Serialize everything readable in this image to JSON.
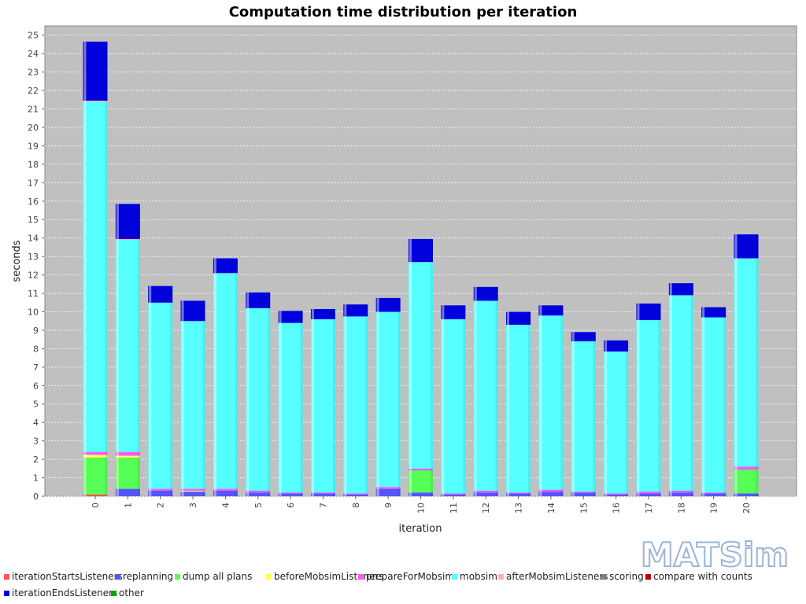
{
  "chart_data": {
    "type": "bar",
    "stacked": true,
    "title": "Computation time distribution per iteration",
    "xlabel": "iteration",
    "ylabel": "seconds",
    "ylim": [
      0,
      25.5
    ],
    "y_ticks": [
      0,
      1,
      2,
      3,
      4,
      5,
      6,
      7,
      8,
      9,
      10,
      11,
      12,
      13,
      14,
      15,
      16,
      17,
      18,
      19,
      20,
      21,
      22,
      23,
      24,
      25
    ],
    "grid": true,
    "legend_position": "bottom",
    "categories": [
      "0",
      "1",
      "2",
      "3",
      "4",
      "5",
      "6",
      "7",
      "8",
      "9",
      "10",
      "11",
      "12",
      "13",
      "14",
      "15",
      "16",
      "17",
      "18",
      "19",
      "20"
    ],
    "series": [
      {
        "name": "iterationStartsListeners",
        "color": "#ff5555",
        "values": [
          0.1,
          0.0,
          0.0,
          0.0,
          0.0,
          0.0,
          0.0,
          0.0,
          0.0,
          0.0,
          0.0,
          0.0,
          0.0,
          0.0,
          0.0,
          0.0,
          0.0,
          0.0,
          0.0,
          0.0,
          0.0
        ]
      },
      {
        "name": "replanning",
        "color": "#5555ff",
        "values": [
          0.0,
          0.4,
          0.3,
          0.25,
          0.3,
          0.2,
          0.15,
          0.15,
          0.1,
          0.4,
          0.2,
          0.1,
          0.2,
          0.15,
          0.25,
          0.2,
          0.1,
          0.15,
          0.2,
          0.15,
          0.15
        ]
      },
      {
        "name": "dump all plans",
        "color": "#55ff55",
        "values": [
          2.0,
          1.7,
          0.0,
          0.0,
          0.0,
          0.0,
          0.0,
          0.0,
          0.0,
          0.0,
          1.2,
          0.0,
          0.0,
          0.0,
          0.0,
          0.0,
          0.0,
          0.0,
          0.0,
          0.0,
          1.3
        ]
      },
      {
        "name": "beforeMobsimListeners",
        "color": "#ffff55",
        "values": [
          0.15,
          0.1,
          0.0,
          0.05,
          0.0,
          0.0,
          0.0,
          0.0,
          0.0,
          0.0,
          0.0,
          0.0,
          0.0,
          0.0,
          0.0,
          0.0,
          0.0,
          0.0,
          0.0,
          0.0,
          0.0
        ]
      },
      {
        "name": "prepareForMobsim",
        "color": "#ff55ff",
        "values": [
          0.15,
          0.2,
          0.1,
          0.1,
          0.1,
          0.1,
          0.05,
          0.05,
          0.05,
          0.1,
          0.1,
          0.05,
          0.1,
          0.05,
          0.1,
          0.05,
          0.05,
          0.1,
          0.1,
          0.05,
          0.15
        ]
      },
      {
        "name": "mobsim",
        "color": "#55ffff",
        "values": [
          19.0,
          11.5,
          10.1,
          9.1,
          11.7,
          9.9,
          9.2,
          9.4,
          9.6,
          9.5,
          11.2,
          9.45,
          10.3,
          9.1,
          9.45,
          8.15,
          7.7,
          9.3,
          10.6,
          9.5,
          11.3
        ]
      },
      {
        "name": "afterMobsimListeners",
        "color": "#ffafaf",
        "values": [
          0.05,
          0.05,
          0.0,
          0.0,
          0.0,
          0.0,
          0.0,
          0.0,
          0.0,
          0.0,
          0.0,
          0.0,
          0.0,
          0.0,
          0.0,
          0.0,
          0.0,
          0.0,
          0.0,
          0.0,
          0.0
        ]
      },
      {
        "name": "scoring",
        "color": "#808080",
        "values": [
          0,
          0,
          0,
          0,
          0,
          0,
          0,
          0,
          0,
          0,
          0,
          0,
          0,
          0,
          0,
          0,
          0,
          0,
          0,
          0,
          0
        ]
      },
      {
        "name": "compare with counts",
        "color": "#c00000",
        "values": [
          0,
          0,
          0,
          0,
          0,
          0,
          0,
          0,
          0,
          0,
          0,
          0,
          0,
          0,
          0,
          0,
          0,
          0,
          0,
          0,
          0
        ]
      },
      {
        "name": "iterationEndsListeners",
        "color": "#0000dd",
        "values": [
          3.2,
          1.9,
          0.9,
          1.1,
          0.8,
          0.85,
          0.65,
          0.55,
          0.65,
          0.75,
          1.25,
          0.75,
          0.75,
          0.7,
          0.55,
          0.5,
          0.6,
          0.9,
          0.65,
          0.55,
          1.3
        ]
      },
      {
        "name": "other",
        "color": "#00aa00",
        "values": [
          0,
          0,
          0,
          0,
          0,
          0,
          0,
          0,
          0,
          0,
          0,
          0,
          0,
          0,
          0,
          0,
          0,
          0,
          0,
          0,
          0
        ]
      }
    ]
  },
  "logo": {
    "text": "MATSim"
  }
}
